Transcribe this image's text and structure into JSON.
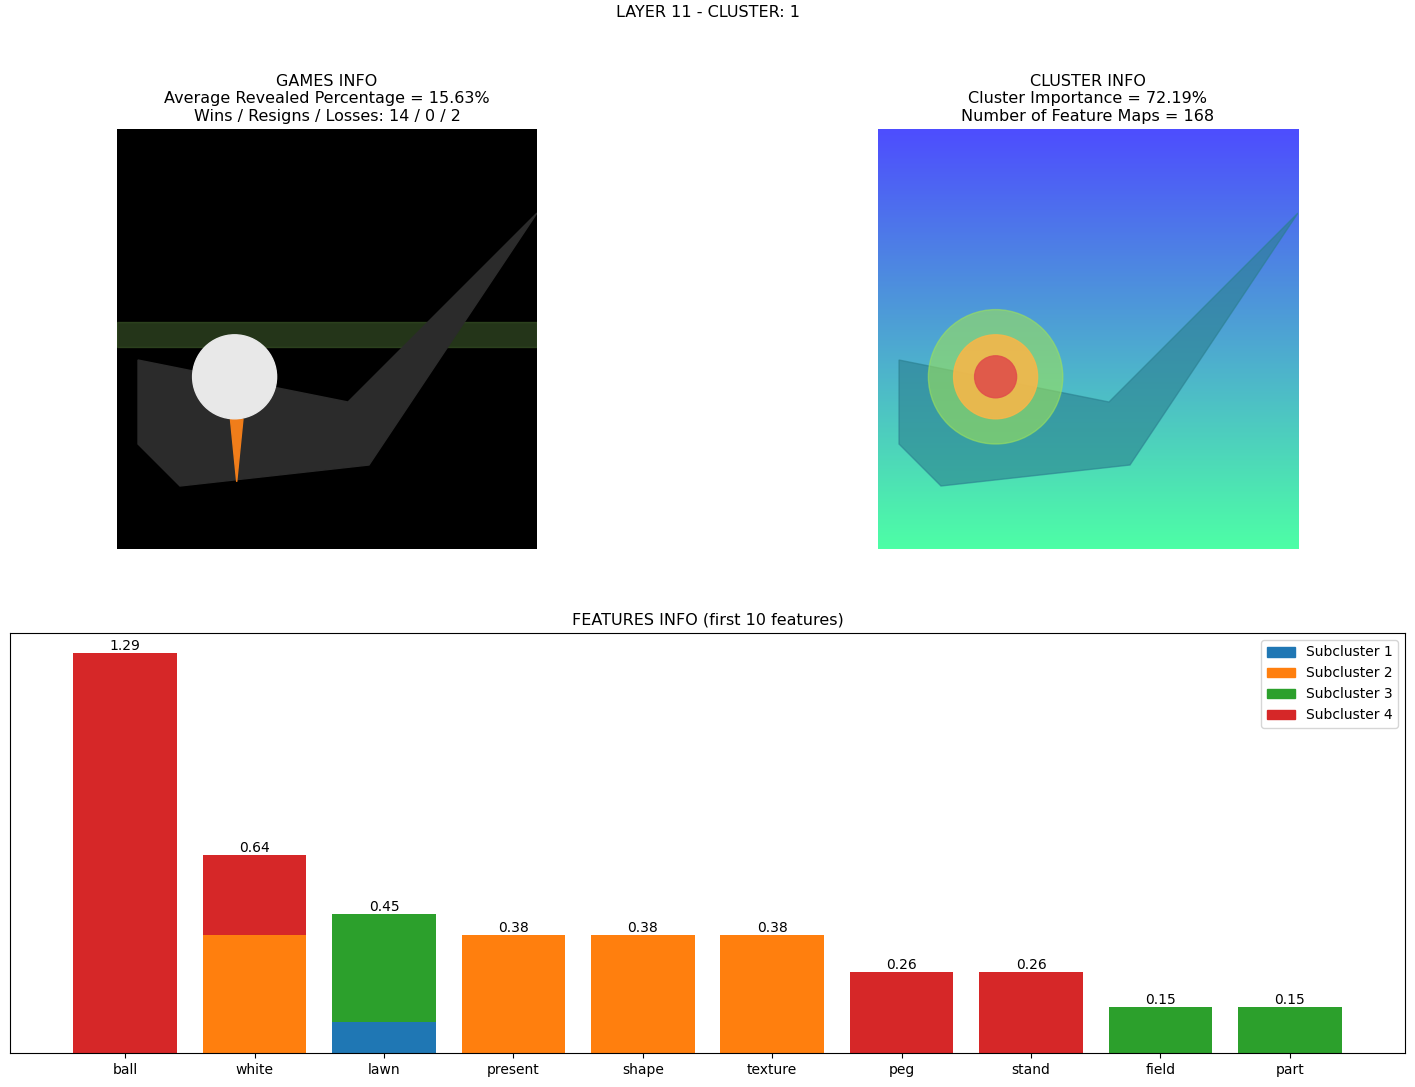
{
  "title": "LAYER 11 - CLUSTER: 1",
  "images": [
    {
      "title": "GAMES INFO\nAverage Revealed Percentage = 15.63%\nWins / Resigns / Losses: 14 / 0 / 2"
    },
    {
      "title": "CLUSTER INFO\nCluster Importance = 72.19%\nNumber of Feature Maps = 168"
    }
  ],
  "chart_data": {
    "type": "bar",
    "title": "FEATURES INFO (first 10 features)",
    "categories": [
      "ball",
      "white",
      "lawn",
      "present",
      "shape",
      "texture",
      "peg",
      "stand",
      "field",
      "part"
    ],
    "stacked": true,
    "series": [
      {
        "name": "Subcluster 1",
        "color": "#1f77b4",
        "values": [
          null,
          null,
          0.1,
          null,
          null,
          null,
          null,
          null,
          null,
          null
        ]
      },
      {
        "name": "Subcluster 2",
        "color": "#ff7f0e",
        "values": [
          null,
          0.38,
          null,
          0.38,
          0.38,
          0.38,
          null,
          null,
          null,
          null
        ]
      },
      {
        "name": "Subcluster 3",
        "color": "#2ca02c",
        "values": [
          null,
          null,
          0.35,
          null,
          null,
          null,
          null,
          null,
          0.15,
          0.15
        ]
      },
      {
        "name": "Subcluster 4",
        "color": "#d62728",
        "values": [
          1.29,
          0.26,
          null,
          null,
          null,
          null,
          0.26,
          0.26,
          null,
          null
        ]
      }
    ],
    "totals": [
      1.29,
      0.64,
      0.45,
      0.38,
      0.38,
      0.38,
      0.26,
      0.26,
      0.15,
      0.15
    ],
    "ylim": [
      0,
      1.355
    ],
    "yticks": [],
    "tick_labels": "x",
    "legend": "upper right"
  }
}
